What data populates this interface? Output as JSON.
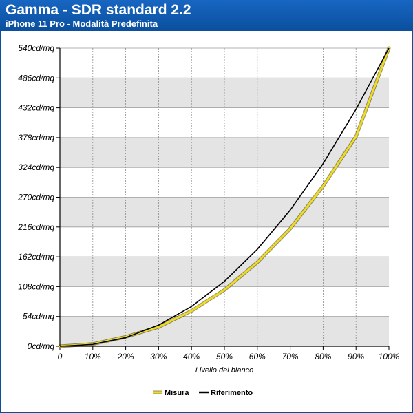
{
  "header": {
    "title": "Gamma - SDR standard 2.2",
    "subtitle": "iPhone 11 Pro - Modalità Predefinita"
  },
  "colors": {
    "header": "#1160b5",
    "band": "#e4e4e4",
    "measure": "#f0dc1e",
    "reference": "#000000"
  },
  "chart_data": {
    "type": "line",
    "title": "Gamma - SDR standard 2.2",
    "subtitle": "iPhone 11 Pro - Modalità Predefinita",
    "xlabel": "Livello del bianco",
    "ylabel": "",
    "x_ticks": [
      "0",
      "10%",
      "20%",
      "30%",
      "40%",
      "50%",
      "60%",
      "70%",
      "80%",
      "90%",
      "100%"
    ],
    "y_ticks": [
      "0cd/mq",
      "54cd/mq",
      "108cd/mq",
      "162cd/mq",
      "216cd/mq",
      "270cd/mq",
      "324cd/mq",
      "378cd/mq",
      "432cd/mq",
      "486cd/mq",
      "540cd/mq"
    ],
    "xlim": [
      0,
      100
    ],
    "ylim": [
      0,
      540
    ],
    "grid": true,
    "legend_position": "bottom-center",
    "x": [
      0,
      10,
      20,
      30,
      40,
      50,
      60,
      70,
      80,
      90,
      100
    ],
    "series": [
      {
        "name": "Misura",
        "color": "#f0dc1e",
        "values": [
          0,
          4,
          17,
          35,
          64,
          102,
          152,
          213,
          290,
          380,
          540
        ]
      },
      {
        "name": "Riferimento",
        "color": "#000000",
        "values": [
          0,
          3.4,
          15.7,
          38.3,
          72,
          117.5,
          175.6,
          246.7,
          330.9,
          429.3,
          540
        ]
      }
    ]
  }
}
